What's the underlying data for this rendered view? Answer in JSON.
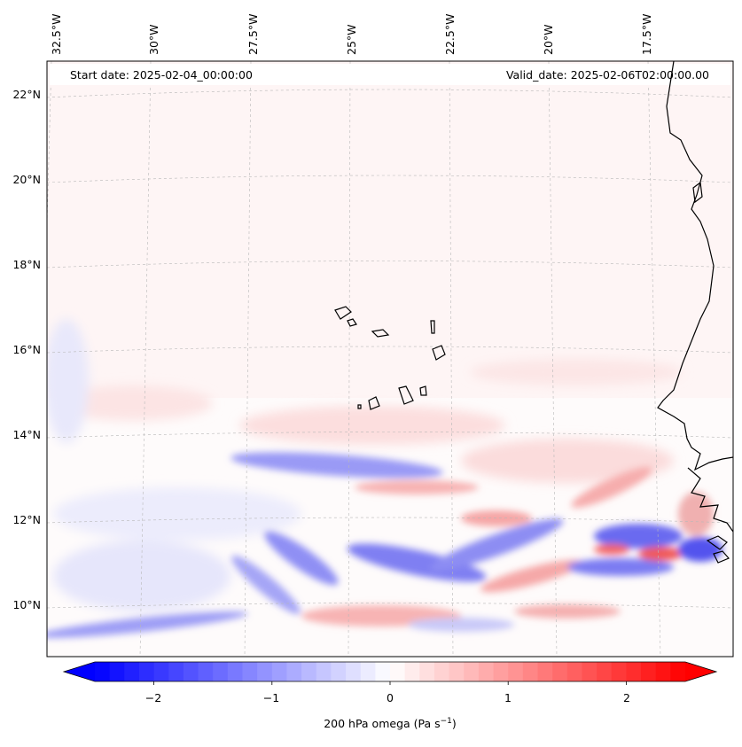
{
  "map": {
    "start_date": "Start date: 2025-02-04_00:00:00",
    "valid_date": "Valid_date: 2025-02-06T02:00:00.00",
    "lon_ticks": [
      "32.5°W",
      "30°W",
      "27.5°W",
      "25°W",
      "22.5°W",
      "20°W",
      "17.5°W"
    ],
    "lat_ticks": [
      "22°N",
      "20°N",
      "18°N",
      "16°N",
      "14°N",
      "12°N",
      "10°N"
    ],
    "extent": {
      "lon_min": -32.8,
      "lon_max": -15.6,
      "lat_min": 8.9,
      "lat_max": 22.8
    },
    "field": "200 hPa omega",
    "features": [
      "Cape Verde Islands",
      "West African coastline (Senegal, Gambia, Guinea-Bissau)"
    ]
  },
  "colorbar": {
    "label_text": "200 hPa omega (Pa s",
    "label_unit_exp": "−1",
    "label_close": ")",
    "tick_labels": [
      "−2",
      "−1",
      "0",
      "1",
      "2"
    ],
    "tick_values": [
      -2,
      -1,
      0,
      1,
      2
    ],
    "vmin": -2.5,
    "vmax": 2.5,
    "extend": "both",
    "colors": {
      "low": "#0000ff",
      "mid": "#ffffff",
      "high": "#ff0000"
    }
  }
}
